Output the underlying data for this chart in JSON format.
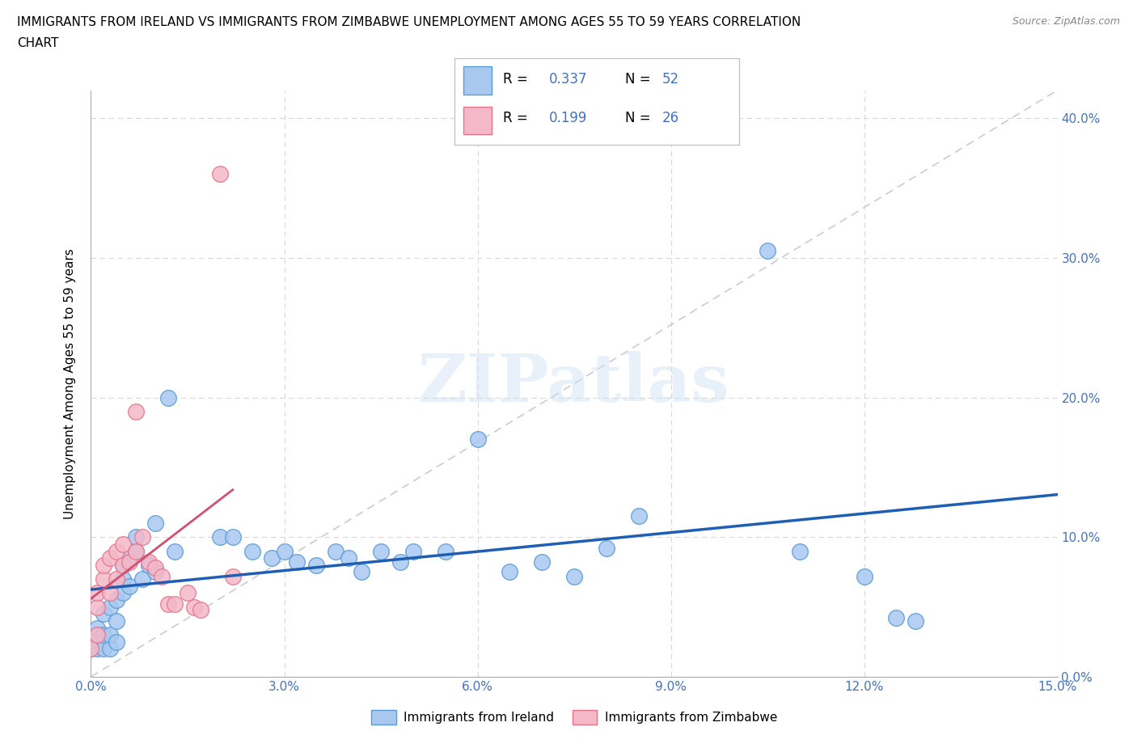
{
  "title_line1": "IMMIGRANTS FROM IRELAND VS IMMIGRANTS FROM ZIMBABWE UNEMPLOYMENT AMONG AGES 55 TO 59 YEARS CORRELATION",
  "title_line2": "CHART",
  "source": "Source: ZipAtlas.com",
  "ylabel": "Unemployment Among Ages 55 to 59 years",
  "xlim": [
    0,
    0.15
  ],
  "ylim": [
    0,
    0.42
  ],
  "ytick_vals": [
    0.0,
    0.1,
    0.2,
    0.3,
    0.4
  ],
  "xtick_vals": [
    0.0,
    0.03,
    0.06,
    0.09,
    0.12,
    0.15
  ],
  "ireland_color": "#a8c8f0",
  "ireland_edge": "#5b9bd5",
  "zimbabwe_color": "#f4b8c8",
  "zimbabwe_edge": "#e8748a",
  "trend_ireland_color": "#1f5eb5",
  "trend_zimbabwe_color": "#d45070",
  "gray_diag_color": "#cccccc",
  "watermark": "ZIPatlas",
  "right_tick_color": "#4472c4",
  "ireland_R": "0.337",
  "ireland_N": "52",
  "zimbabwe_R": "0.199",
  "zimbabwe_N": "26",
  "ireland_x": [
    0.0,
    0.0,
    0.001,
    0.001,
    0.001,
    0.002,
    0.002,
    0.002,
    0.003,
    0.003,
    0.003,
    0.004,
    0.004,
    0.004,
    0.005,
    0.005,
    0.005,
    0.006,
    0.006,
    0.007,
    0.007,
    0.008,
    0.009,
    0.01,
    0.01,
    0.012,
    0.013,
    0.02,
    0.022,
    0.025,
    0.028,
    0.03,
    0.032,
    0.035,
    0.038,
    0.04,
    0.042,
    0.045,
    0.048,
    0.05,
    0.055,
    0.06,
    0.065,
    0.07,
    0.075,
    0.08,
    0.085,
    0.105,
    0.11,
    0.12,
    0.125,
    0.128
  ],
  "ireland_y": [
    0.02,
    0.025,
    0.02,
    0.03,
    0.035,
    0.02,
    0.03,
    0.045,
    0.02,
    0.03,
    0.05,
    0.025,
    0.04,
    0.055,
    0.06,
    0.07,
    0.08,
    0.065,
    0.085,
    0.09,
    0.1,
    0.07,
    0.08,
    0.11,
    0.075,
    0.2,
    0.09,
    0.1,
    0.1,
    0.09,
    0.085,
    0.09,
    0.082,
    0.08,
    0.09,
    0.085,
    0.075,
    0.09,
    0.082,
    0.09,
    0.09,
    0.17,
    0.075,
    0.082,
    0.072,
    0.092,
    0.115,
    0.305,
    0.09,
    0.072,
    0.042,
    0.04
  ],
  "zimbabwe_x": [
    0.0,
    0.001,
    0.001,
    0.001,
    0.002,
    0.002,
    0.003,
    0.003,
    0.004,
    0.004,
    0.005,
    0.005,
    0.006,
    0.007,
    0.007,
    0.008,
    0.009,
    0.01,
    0.011,
    0.012,
    0.013,
    0.015,
    0.016,
    0.017,
    0.02,
    0.022
  ],
  "zimbabwe_y": [
    0.02,
    0.05,
    0.06,
    0.03,
    0.07,
    0.08,
    0.06,
    0.085,
    0.07,
    0.09,
    0.08,
    0.095,
    0.082,
    0.09,
    0.19,
    0.1,
    0.082,
    0.078,
    0.072,
    0.052,
    0.052,
    0.06,
    0.05,
    0.048,
    0.36,
    0.072
  ]
}
